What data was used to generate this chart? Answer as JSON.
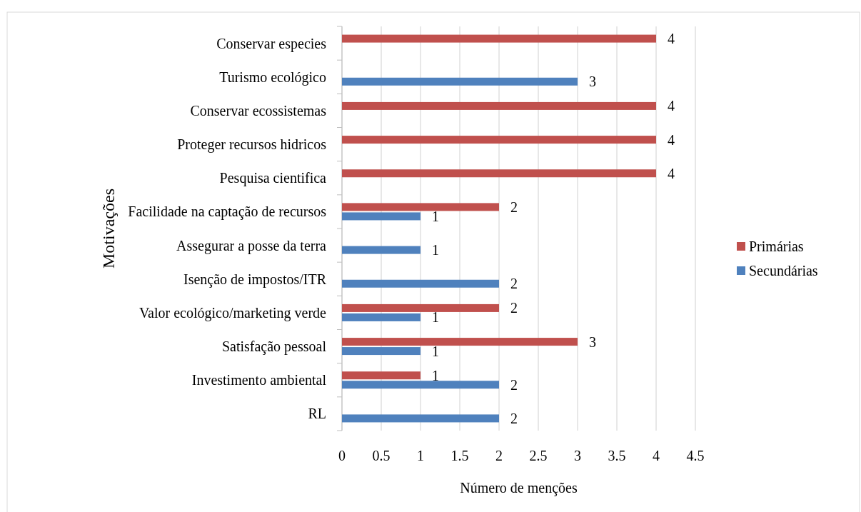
{
  "chart_data": {
    "type": "bar",
    "orientation": "horizontal",
    "xlabel": "Número de menções",
    "ylabel": "Motivações",
    "categories": [
      "Conservar especies",
      "Turismo ecológico",
      "Conservar ecossistemas",
      "Proteger recursos hidricos",
      "Pesquisa cientifica",
      "Facilidade na captação de recursos",
      "Assegurar a posse da terra",
      "Isenção de impostos/ITR",
      "Valor ecológico/marketing verde",
      "Satisfação pessoal",
      "Investimento ambiental",
      "RL"
    ],
    "series": [
      {
        "name": "Primárias",
        "color": "#c0504d",
        "values": [
          4,
          null,
          4,
          4,
          4,
          2,
          null,
          null,
          2,
          3,
          1,
          null
        ]
      },
      {
        "name": "Secundárias",
        "color": "#4f81bd",
        "values": [
          null,
          3,
          null,
          null,
          null,
          1,
          1,
          2,
          1,
          1,
          2,
          2
        ]
      }
    ],
    "xlim": [
      0,
      4.5
    ],
    "xticks": [
      0,
      0.5,
      1,
      1.5,
      2,
      2.5,
      3,
      3.5,
      4,
      4.5
    ],
    "grid": "x",
    "legend": "right",
    "data_labels": true
  }
}
